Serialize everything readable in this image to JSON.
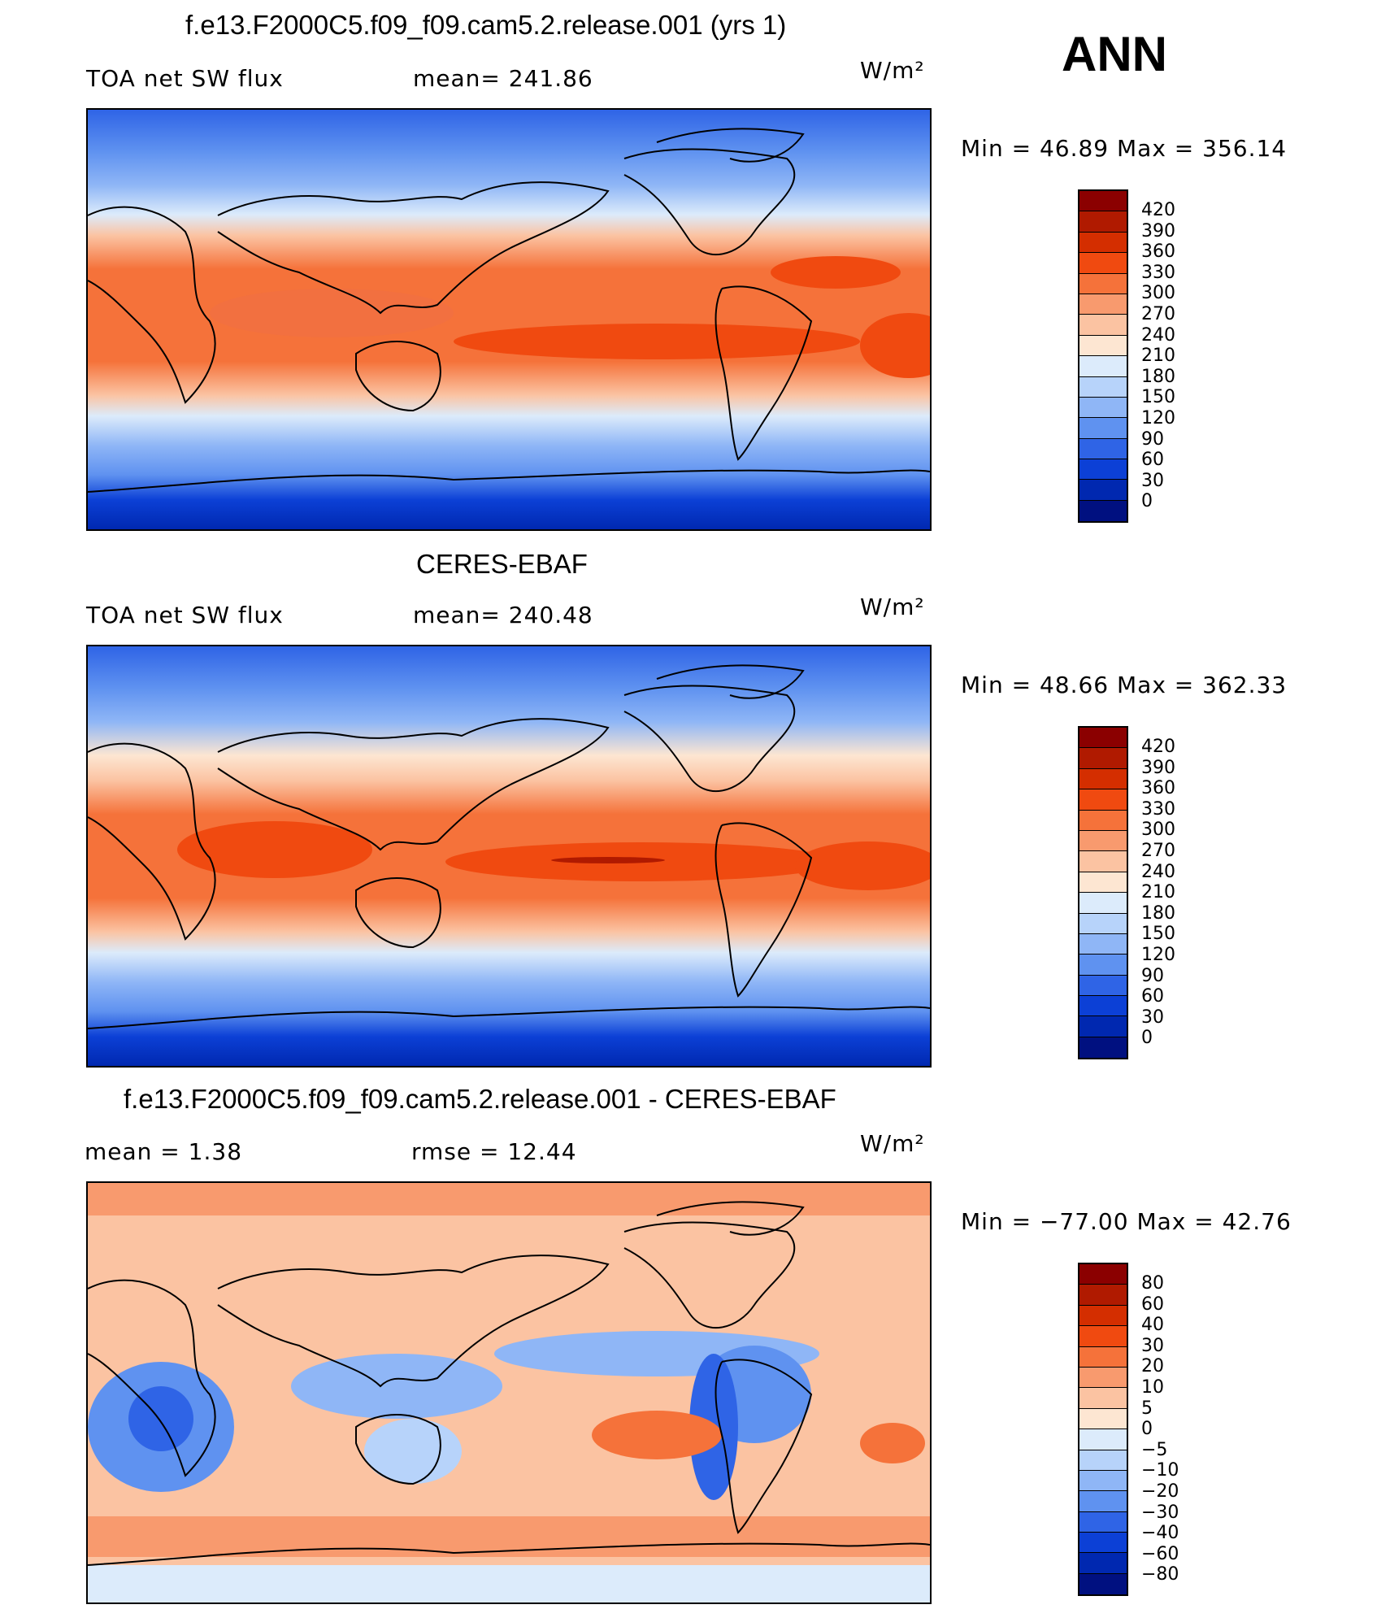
{
  "season": "ANN",
  "units": "W/m²",
  "panels": [
    {
      "title": "f.e13.F2000C5.f09_f09.cam5.2.release.001 (yrs 1)",
      "left_label": "TOA net SW flux",
      "mid_label": "mean= 241.86",
      "units": "W/m²",
      "minmax": "Min =   46.89 Max = 356.14",
      "colorbar": {
        "colors": [
          "#8b0000",
          "#b01a00",
          "#d42e00",
          "#f04a10",
          "#f5723a",
          "#f89a6e",
          "#fbc3a2",
          "#fde6d2",
          "#dcebfb",
          "#b7d3fa",
          "#8fb6f6",
          "#5f92f0",
          "#2f64e6",
          "#0c40d6",
          "#0028b0",
          "#001080"
        ],
        "labels": [
          "420",
          "390",
          "360",
          "330",
          "300",
          "270",
          "240",
          "210",
          "180",
          "150",
          "120",
          "90",
          "60",
          "30",
          "0"
        ]
      }
    },
    {
      "title": "CERES-EBAF",
      "left_label": "TOA net SW flux",
      "mid_label": "mean= 240.48",
      "units": "W/m²",
      "minmax": "Min =   48.66 Max = 362.33",
      "colorbar": {
        "colors": [
          "#8b0000",
          "#b01a00",
          "#d42e00",
          "#f04a10",
          "#f5723a",
          "#f89a6e",
          "#fbc3a2",
          "#fde6d2",
          "#dcebfb",
          "#b7d3fa",
          "#8fb6f6",
          "#5f92f0",
          "#2f64e6",
          "#0c40d6",
          "#0028b0",
          "#001080"
        ],
        "labels": [
          "420",
          "390",
          "360",
          "330",
          "300",
          "270",
          "240",
          "210",
          "180",
          "150",
          "120",
          "90",
          "60",
          "30",
          "0"
        ]
      }
    },
    {
      "title": "f.e13.F2000C5.f09_f09.cam5.2.release.001 - CERES-EBAF",
      "left_label": "mean =    1.38",
      "mid_label": "rmse =   12.44",
      "units": "W/m²",
      "minmax": "Min = −77.00 Max =   42.76",
      "colorbar": {
        "colors": [
          "#8b0000",
          "#b01a00",
          "#d42e00",
          "#f04a10",
          "#f5723a",
          "#f89a6e",
          "#fbc3a2",
          "#fde6d2",
          "#dcebfb",
          "#b7d3fa",
          "#8fb6f6",
          "#5f92f0",
          "#2f64e6",
          "#0c40d6",
          "#0028b0",
          "#001080"
        ],
        "labels": [
          "80",
          "60",
          "40",
          "30",
          "20",
          "10",
          "5",
          "0",
          "−5",
          "−10",
          "−20",
          "−30",
          "−40",
          "−60",
          "−80"
        ]
      }
    }
  ],
  "colors": {
    "field_top": "#3a6fe8",
    "field_tropics": "#f36f3c",
    "field_core": "#f04a10",
    "field_south_ocean": "#1540d8",
    "diff_ocean": "#f89a6e",
    "diff_neg": "#3a6fe8"
  }
}
